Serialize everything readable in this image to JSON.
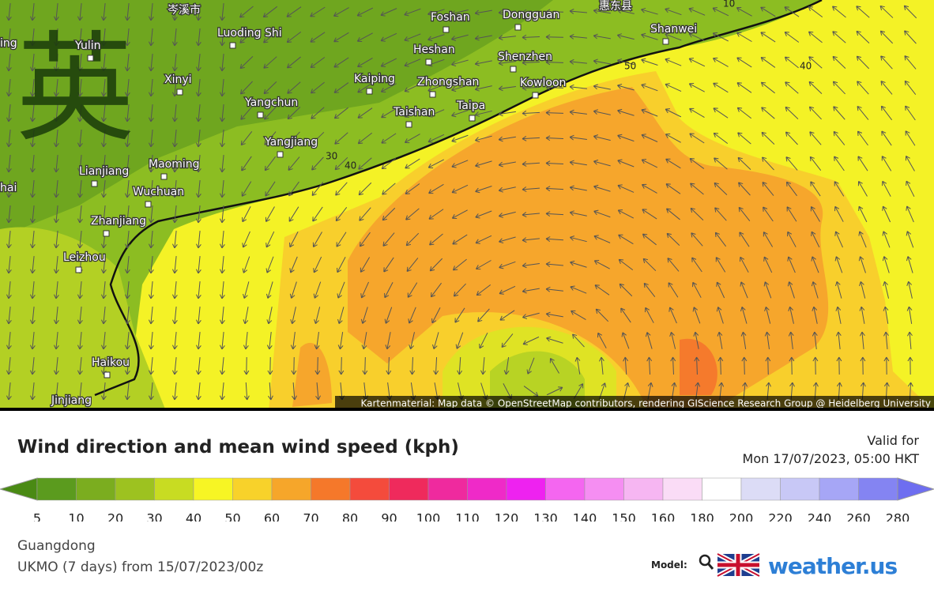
{
  "map": {
    "watermark": "英",
    "places": [
      "岑溪市",
      "惠东县",
      "ing",
      "Yulin",
      "Luoding Shi",
      "Foshan",
      "Dongguan",
      "Shanwei",
      "Heshan",
      "Shenzhen",
      "Xinyi",
      "Kaiping",
      "Zhongshan",
      "Kowloon",
      "Yangchun",
      "Taishan",
      "Taipa",
      "Yangjiang",
      "Lianjiang",
      "Maoming",
      "hai",
      "Wuchuan",
      "Zhanjiang",
      "Leizhou",
      "Haikou",
      "Jinjiang"
    ],
    "contour_labels": [
      10,
      30,
      40,
      50,
      40
    ],
    "attribution": "Kartenmaterial: Map data © OpenStreetMap contributors, rendering GIScience Research Group @ Heidelberg University"
  },
  "header": {
    "title": "Wind direction and mean wind speed (kph)",
    "valid_label": "Valid for",
    "valid_time": "Mon 17/07/2023, 05:00 HKT"
  },
  "legend": {
    "ticks": [
      5,
      10,
      20,
      30,
      40,
      50,
      60,
      70,
      80,
      90,
      100,
      110,
      120,
      130,
      140,
      150,
      160,
      180,
      200,
      220,
      240,
      260,
      280
    ],
    "colors": [
      "#5b9b1e",
      "#7bad1f",
      "#9dc220",
      "#c8dc22",
      "#f7f524",
      "#f8d22a",
      "#f6a62a",
      "#f5782a",
      "#f44b3c",
      "#ef2a5c",
      "#ef2a9e",
      "#ef2ac8",
      "#ee22f0",
      "#f466f0",
      "#f58ef2",
      "#f6b6f2",
      "#fadcf6",
      "#ffffff",
      "#dcdcf6",
      "#c8c8f6",
      "#a6a6f6",
      "#8484f2"
    ],
    "low_color": "#4a8a14",
    "high_color": "#6e6ef0"
  },
  "footer": {
    "region": "Guangdong",
    "model_run": "UKMO (7 days) from 15/07/2023/00z",
    "model_label": "Model:",
    "brand": "weather.us"
  }
}
